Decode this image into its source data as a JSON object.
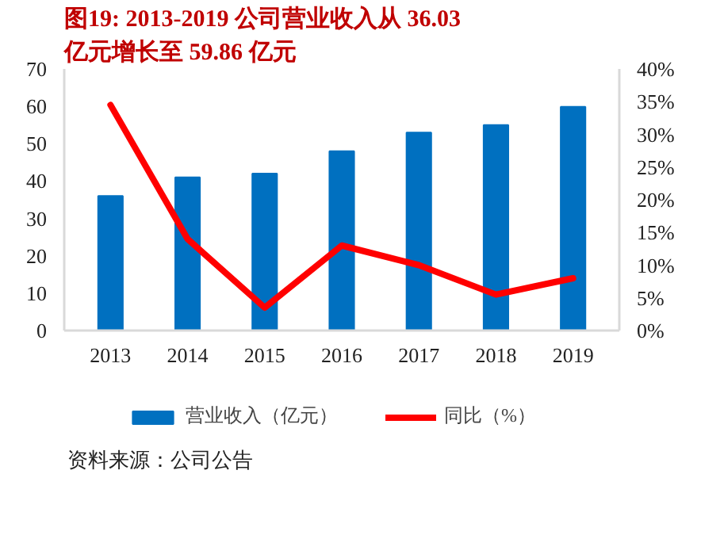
{
  "chart_data": {
    "type": "bar",
    "title": "图19:    2013-2019 公司营业收入从 36.03 亿元增长至 59.86 亿元",
    "categories": [
      "2013",
      "2014",
      "2015",
      "2016",
      "2017",
      "2018",
      "2019"
    ],
    "series": [
      {
        "name": "营业收入（亿元）",
        "color": "#0070c0",
        "values": [
          36.03,
          41,
          42,
          48,
          53,
          55,
          59.86
        ]
      },
      {
        "name": "同比（%）",
        "type": "line",
        "axis": "y2",
        "color": "#ff0000",
        "values": [
          34.5,
          14.0,
          3.5,
          13.0,
          10.0,
          5.5,
          8.0
        ]
      }
    ],
    "ylim": [
      0,
      70
    ],
    "yticks": [
      0,
      10,
      20,
      30,
      40,
      50,
      60,
      70
    ],
    "y2lim": [
      0,
      40
    ],
    "y2ticks": [
      {
        "value": 0,
        "label": "0%"
      },
      {
        "value": 5,
        "label": "5%"
      },
      {
        "value": 10,
        "label": "10%"
      },
      {
        "value": 15,
        "label": "15%"
      },
      {
        "value": 20,
        "label": "20%"
      },
      {
        "value": 25,
        "label": "25%"
      },
      {
        "value": 30,
        "label": "30%"
      },
      {
        "value": 35,
        "label": "35%"
      },
      {
        "value": 40,
        "label": "40%"
      }
    ],
    "grid": false,
    "legend": "bottom",
    "marker": "none",
    "line_style": "solid",
    "annotations": [
      "资料来源：公司公告"
    ]
  }
}
